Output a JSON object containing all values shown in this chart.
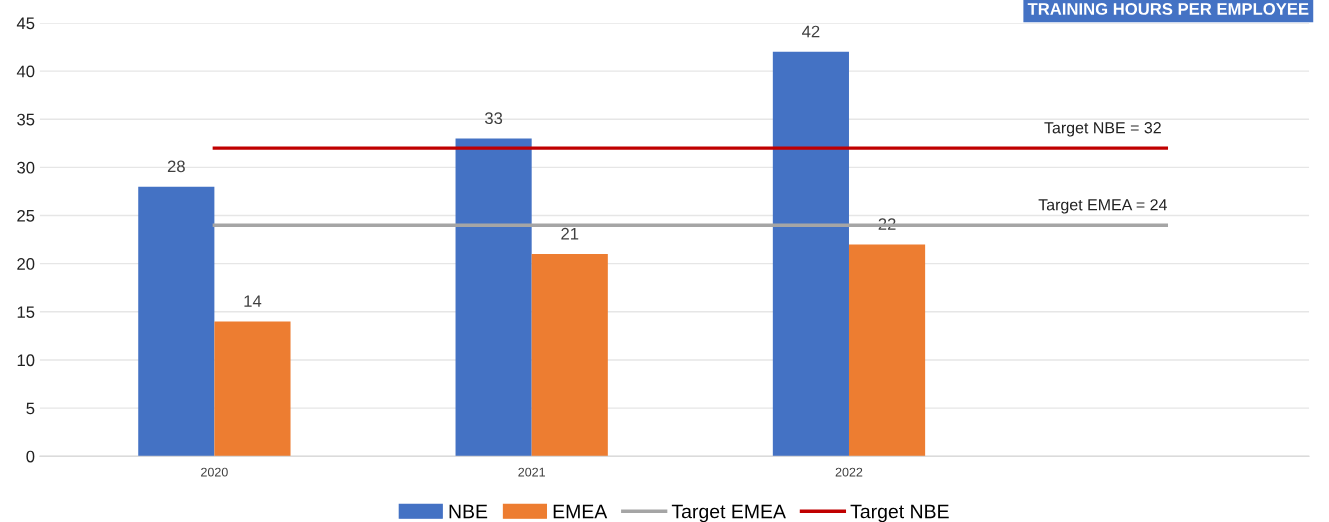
{
  "chart_data": {
    "type": "bar",
    "title": "TRAINING HOURS PER EMPLOYEE",
    "categories": [
      "2020",
      "2021",
      "2022",
      null
    ],
    "series": [
      {
        "name": "NBE",
        "color": "#4472c4",
        "values": [
          28,
          33,
          42,
          null
        ],
        "value_labels": [
          "28",
          "33",
          "42",
          null
        ]
      },
      {
        "name": "EMEA",
        "color": "#ed7d31",
        "values": [
          14,
          21,
          22,
          null
        ],
        "value_labels": [
          "14",
          "21",
          "22",
          null
        ]
      },
      {
        "name": "Target EMEA",
        "type": "line",
        "color": "#a5a5a5",
        "values": [
          24,
          24,
          24,
          24
        ]
      },
      {
        "name": "Target NBE",
        "type": "line",
        "color": "#c00000",
        "values": [
          32,
          32,
          32,
          32
        ]
      }
    ],
    "annotations": [
      {
        "text": "Target NBE = 32",
        "y": 32
      },
      {
        "text": "Target EMEA = 24",
        "y": 24
      }
    ],
    "ylim": [
      0,
      45
    ],
    "yticks": [
      0,
      5,
      10,
      15,
      20,
      25,
      30,
      35,
      40,
      45
    ],
    "grid": "y",
    "legend": "bottom"
  }
}
